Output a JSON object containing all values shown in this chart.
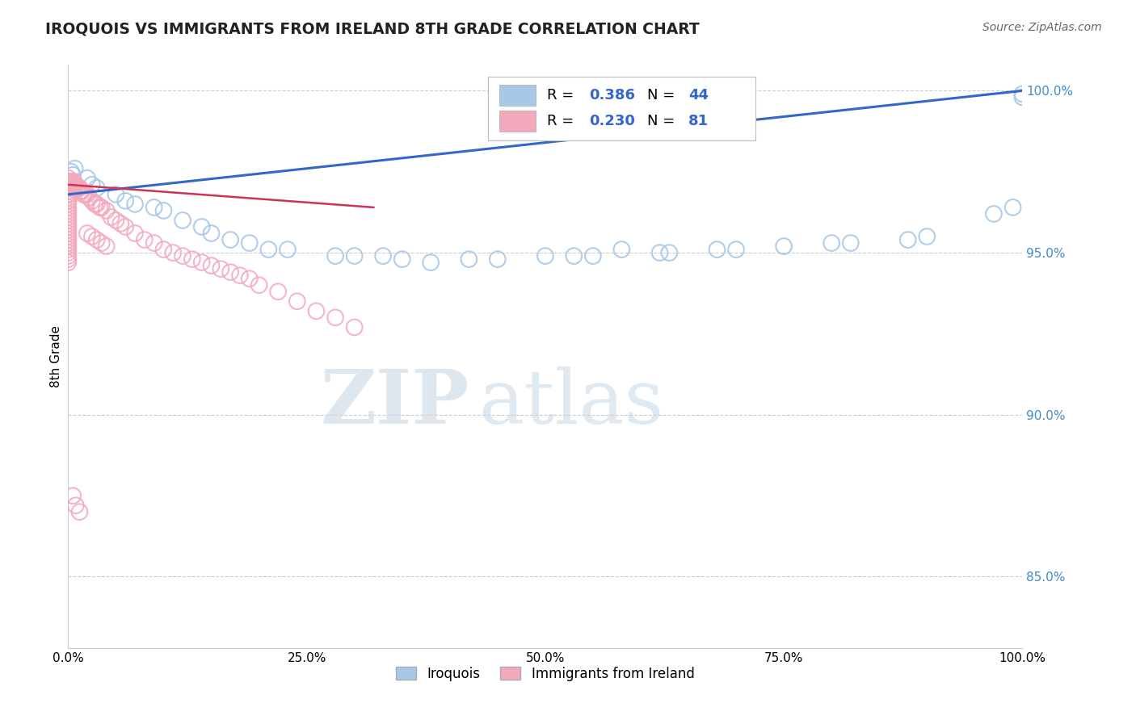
{
  "title": "IROQUOIS VS IMMIGRANTS FROM IRELAND 8TH GRADE CORRELATION CHART",
  "source_text": "Source: ZipAtlas.com",
  "ylabel": "8th Grade",
  "blue_color": "#A8C8E8",
  "pink_color": "#F4A8BC",
  "blue_line_color": "#3366CC",
  "pink_line_color": "#CC3355",
  "watermark_zip": "ZIP",
  "watermark_atlas": "atlas",
  "iroquois_x": [
    0.001,
    0.003,
    0.005,
    0.007,
    0.02,
    0.025,
    0.03,
    0.05,
    0.06,
    0.07,
    0.09,
    0.1,
    0.12,
    0.14,
    0.15,
    0.17,
    0.19,
    0.21,
    0.23,
    0.28,
    0.3,
    0.33,
    0.35,
    0.38,
    0.42,
    0.5,
    0.53,
    0.58,
    0.63,
    0.7,
    0.8,
    0.82,
    0.88,
    0.9,
    0.97,
    0.99,
    1.0,
    1.0,
    0.45,
    0.55,
    0.62,
    0.68,
    0.75
  ],
  "iroquois_y": [
    0.972,
    0.975,
    0.974,
    0.976,
    0.973,
    0.971,
    0.97,
    0.968,
    0.966,
    0.965,
    0.964,
    0.963,
    0.96,
    0.958,
    0.956,
    0.954,
    0.953,
    0.951,
    0.951,
    0.949,
    0.949,
    0.949,
    0.948,
    0.947,
    0.948,
    0.949,
    0.949,
    0.951,
    0.95,
    0.951,
    0.953,
    0.953,
    0.954,
    0.955,
    0.962,
    0.964,
    0.998,
    0.999,
    0.948,
    0.949,
    0.95,
    0.951,
    0.952
  ],
  "ireland_x": [
    0.0,
    0.0,
    0.0,
    0.0,
    0.0,
    0.0,
    0.0,
    0.0,
    0.0,
    0.0,
    0.0,
    0.0,
    0.0,
    0.0,
    0.0,
    0.0,
    0.0,
    0.0,
    0.0,
    0.0,
    0.0,
    0.0,
    0.0,
    0.0,
    0.0,
    0.0,
    0.0,
    0.0,
    0.0,
    0.0,
    0.003,
    0.004,
    0.005,
    0.006,
    0.007,
    0.008,
    0.009,
    0.01,
    0.012,
    0.013,
    0.015,
    0.016,
    0.018,
    0.02,
    0.022,
    0.025,
    0.028,
    0.03,
    0.033,
    0.035,
    0.04,
    0.045,
    0.05,
    0.055,
    0.06,
    0.07,
    0.08,
    0.09,
    0.1,
    0.11,
    0.12,
    0.13,
    0.14,
    0.15,
    0.16,
    0.17,
    0.18,
    0.19,
    0.2,
    0.22,
    0.24,
    0.26,
    0.28,
    0.3,
    0.02,
    0.025,
    0.03,
    0.035,
    0.04,
    0.005,
    0.008,
    0.012
  ],
  "ireland_y": [
    0.97,
    0.971,
    0.972,
    0.973,
    0.968,
    0.969,
    0.97,
    0.966,
    0.967,
    0.968,
    0.965,
    0.966,
    0.964,
    0.963,
    0.962,
    0.961,
    0.96,
    0.959,
    0.958,
    0.957,
    0.956,
    0.955,
    0.954,
    0.953,
    0.952,
    0.951,
    0.95,
    0.949,
    0.948,
    0.947,
    0.972,
    0.97,
    0.971,
    0.972,
    0.97,
    0.971,
    0.97,
    0.97,
    0.97,
    0.969,
    0.969,
    0.968,
    0.968,
    0.968,
    0.967,
    0.966,
    0.965,
    0.965,
    0.964,
    0.964,
    0.963,
    0.961,
    0.96,
    0.959,
    0.958,
    0.956,
    0.954,
    0.953,
    0.951,
    0.95,
    0.949,
    0.948,
    0.947,
    0.946,
    0.945,
    0.944,
    0.943,
    0.942,
    0.94,
    0.938,
    0.935,
    0.932,
    0.93,
    0.927,
    0.956,
    0.955,
    0.954,
    0.953,
    0.952,
    0.875,
    0.872,
    0.87
  ],
  "blue_trend_x": [
    0.0,
    1.0
  ],
  "blue_trend_y": [
    0.968,
    1.0
  ],
  "pink_trend_x": [
    0.0,
    0.32
  ],
  "pink_trend_y": [
    0.971,
    0.964
  ],
  "xlim": [
    0.0,
    1.0
  ],
  "ylim": [
    0.828,
    1.008
  ],
  "yticks": [
    0.85,
    0.9,
    0.95,
    1.0
  ],
  "xticks": [
    0.0,
    0.25,
    0.5,
    0.75,
    1.0
  ],
  "legend_r1": "0.386",
  "legend_n1": "44",
  "legend_r2": "0.230",
  "legend_n2": "81"
}
